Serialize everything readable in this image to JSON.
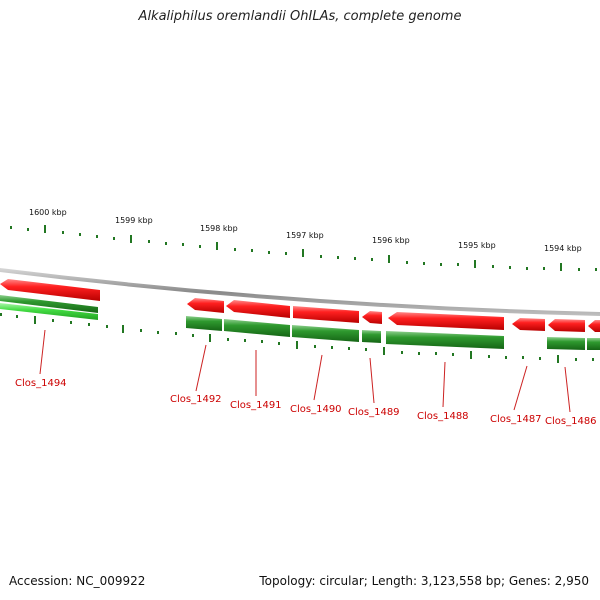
{
  "title": "Alkaliphilus oremlandii OhILAs, complete genome",
  "footer": {
    "accession": "Accession: NC_009922",
    "summary": "Topology: circular; Length: 3,123,558 bp; Genes: 2,950"
  },
  "colors": {
    "forward_strand": "#ee1111",
    "reverse_strand": "#2a8a2a",
    "highlight_reverse": "#3ecc3e",
    "backbone": "#909090",
    "tick_mark": "#227722",
    "gene_label": "#cc0000",
    "leader_line": "#cc2222"
  },
  "scale_labels": [
    "1600 kbp",
    "1599 kbp",
    "1598 kbp",
    "1597 kbp",
    "1596 kbp",
    "1595 kbp",
    "1594 kbp"
  ],
  "genes": [
    {
      "label": "Clos_1494"
    },
    {
      "label": "Clos_1492"
    },
    {
      "label": "Clos_1491"
    },
    {
      "label": "Clos_1490"
    },
    {
      "label": "Clos_1489"
    },
    {
      "label": "Clos_1488"
    },
    {
      "label": "Clos_1487"
    },
    {
      "label": "Clos_1486"
    }
  ]
}
